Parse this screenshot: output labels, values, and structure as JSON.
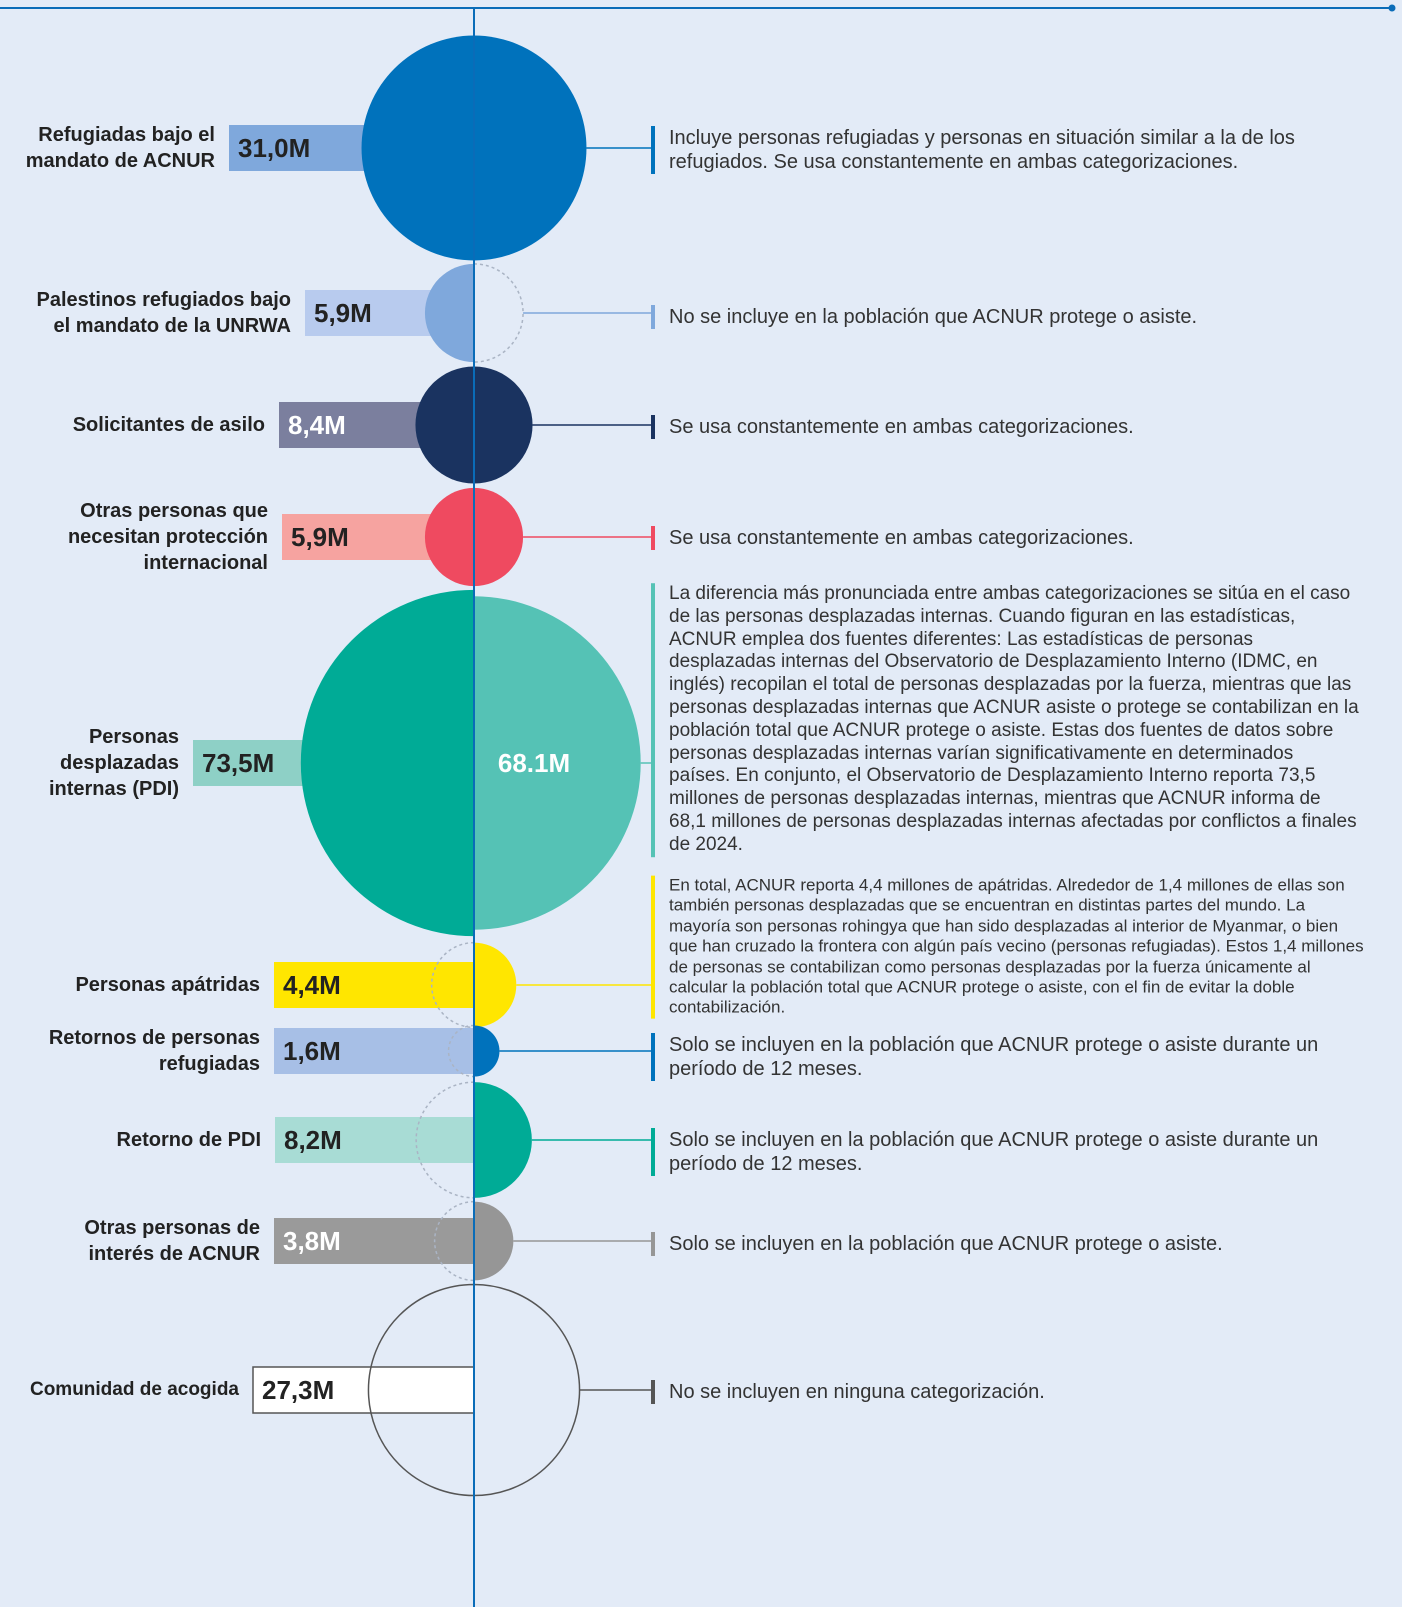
{
  "rows": [
    {
      "label": "Refugiadas bajo el mandato de ACNUR",
      "value": 31.0,
      "value_label": "31,0M",
      "color": "#0072bc",
      "bar_color": "#7fa8dc",
      "left_style": "fill",
      "right_style": "fill",
      "note": "Incluye personas refugiadas y personas en situación similar a la de los refugiados. Se usa constantemente en ambas categorizaciones."
    },
    {
      "label": "Palestinos refugiados bajo el mandato de la UNRWA",
      "value": 5.9,
      "value_label": "5,9M",
      "color": "#7fa8dc",
      "bar_color": "#b8cbee",
      "left_style": "fill",
      "right_style": "dashed",
      "note": "No se incluye en la población que ACNUR protege o asiste."
    },
    {
      "label": "Solicitantes de asilo",
      "value": 8.4,
      "value_label": "8,4M",
      "color": "#1a3360",
      "bar_color": "#7b7f9e",
      "left_style": "fill",
      "right_style": "fill",
      "note": "Se usa constantemente en ambas categorizaciones."
    },
    {
      "label": "Otras personas que necesitan protección internacional",
      "value": 5.9,
      "value_label": "5,9M",
      "color": "#ef4a60",
      "bar_color": "#f6a3a0",
      "left_style": "fill",
      "right_style": "fill",
      "note": "Se usa constantemente en ambas categorizaciones."
    },
    {
      "label": "Personas desplazadas internas (PDI)",
      "value": 73.5,
      "value_label": "73,5M",
      "right_value": 68.1,
      "right_value_label": "68.1M",
      "color": "#00ab96",
      "right_color": "#55c2b5",
      "bar_color": "#8ed0c6",
      "left_style": "fill",
      "right_style": "fill",
      "note": "La diferencia más pronunciada entre ambas categorizaciones se sitúa en el caso de las personas desplazadas internas. Cuando figuran en las estadísticas, ACNUR emplea dos fuentes diferentes: Las estadísticas de personas desplazadas internas del Observatorio de Desplazamiento Interno (IDMC, en inglés) recopilan el total de personas desplazadas por la fuerza, mientras que las personas desplazadas internas que ACNUR asiste o protege se contabilizan en la población total que ACNUR protege o asiste. Estas dos fuentes de datos sobre personas desplazadas internas varían significativamente en determinados países. En conjunto, el Observatorio de Desplazamiento Interno reporta 73,5 millones de personas desplazadas internas, mientras que ACNUR informa de 68,1 millones de personas desplazadas internas afectadas por conflictos a finales de 2024."
    },
    {
      "label": "Personas apátridas",
      "value": 4.4,
      "value_label": "4,4M",
      "color": "#ffe600",
      "bar_color": "#ffe600",
      "left_style": "dashed",
      "right_style": "fill",
      "note": "En total, ACNUR reporta 4,4 millones de apátridas. Alrededor de 1,4 millones de ellas son también personas desplazadas que se encuentran en distintas partes del mundo. La mayoría son personas rohingya que han sido desplazadas al interior de Myanmar, o bien que han cruzado la frontera con algún país vecino (personas refugiadas). Estos 1,4 millones de personas se contabilizan como personas desplazadas por la fuerza únicamente al calcular la población total que ACNUR protege o asiste, con el fin de evitar la doble contabilización."
    },
    {
      "label": "Retornos de personas refugiadas",
      "value": 1.6,
      "value_label": "1,6M",
      "color": "#0072bc",
      "bar_color": "#a7bfe6",
      "left_style": "dashed",
      "right_style": "fill",
      "note": "Solo se incluyen en la población que ACNUR protege o asiste durante un período de 12 meses."
    },
    {
      "label": "Retorno de PDI",
      "value": 8.2,
      "value_label": "8,2M",
      "color": "#00ab96",
      "bar_color": "#a8dcd5",
      "left_style": "dashed",
      "right_style": "fill",
      "note": "Solo se incluyen en la población que ACNUR protege o asiste durante un período de 12 meses."
    },
    {
      "label": "Otras personas de interés de ACNUR",
      "value": 3.8,
      "value_label": "3,8M",
      "color": "#969696",
      "bar_color": "#9a9a9a",
      "left_style": "dashed",
      "right_style": "fill",
      "note": "Solo se incluyen en la población que ACNUR protege o asiste."
    },
    {
      "label": "Comunidad de acogida",
      "value": 27.3,
      "value_label": "27,3M",
      "color": "#555555",
      "bar_color": "#ffffff",
      "left_style": "outline",
      "right_style": "outline",
      "note": "No se incluyen en ninguna categorización."
    }
  ]
}
